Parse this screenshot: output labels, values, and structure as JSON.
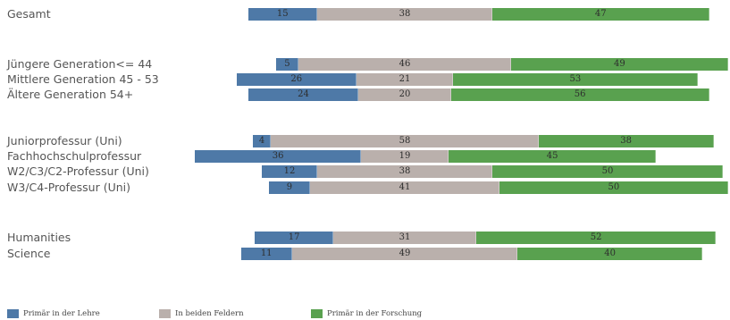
{
  "chart_data": {
    "type": "bar",
    "orientation": "horizontal-stacked-diverging",
    "categories": [
      "Gesamt",
      "Jüngere Generation<= 44",
      "Mittlere Generation 45 - 53",
      "Ältere Generation 54+",
      "Juniorprofessur (Uni)",
      "Fachhochschulprofessur",
      "W2/C3/C2-Professur (Uni)",
      "W3/C4-Professur (Uni)",
      "Humanities",
      "Science"
    ],
    "groups": [
      [
        0
      ],
      [
        1,
        2,
        3
      ],
      [
        4,
        5,
        6,
        7
      ],
      [
        8,
        9
      ]
    ],
    "series": [
      {
        "name": "Primär in der Lehre",
        "color": "#4e79a7",
        "values": [
          15,
          5,
          26,
          24,
          4,
          36,
          12,
          9,
          17,
          11
        ]
      },
      {
        "name": "In beiden Feldern",
        "color": "#bab0ac",
        "values": [
          38,
          46,
          21,
          20,
          58,
          19,
          38,
          41,
          31,
          49
        ]
      },
      {
        "name": "Primär in der Forschung",
        "color": "#59a14f",
        "values": [
          47,
          49,
          53,
          56,
          38,
          45,
          50,
          50,
          52,
          40
        ]
      }
    ],
    "legend_position": "bottom-left",
    "grid": false
  }
}
